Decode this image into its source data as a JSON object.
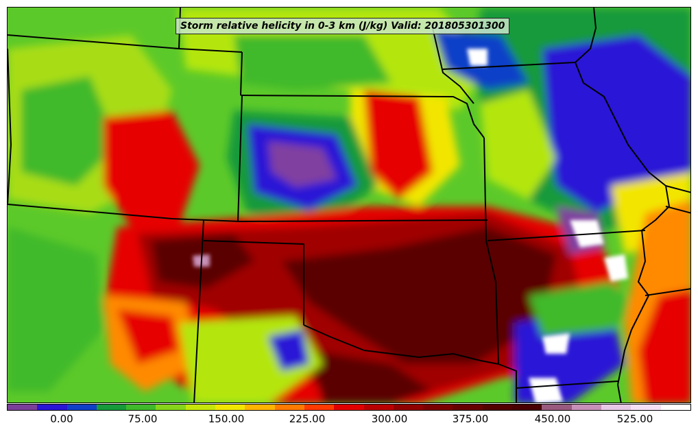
{
  "title": "Storm relative helicity in 0-3 km (J/kg) Valid: 201805301300",
  "colorbar": {
    "colors": [
      "#7b3f9a",
      "#2a14d6",
      "#1040c8",
      "#169a3a",
      "#3fb92a",
      "#86d51b",
      "#c6e60a",
      "#f2e600",
      "#ffb400",
      "#ff7a00",
      "#ff3a00",
      "#e00000",
      "#b80000",
      "#900000",
      "#7a0000",
      "#660000",
      "#520000",
      "#480000",
      "#9a5a80",
      "#c890b8",
      "#e8c8e6",
      "#f6e0f6",
      "#ffffff"
    ],
    "labels": [
      "0.00",
      "75.00",
      "150.00",
      "225.00",
      "300.00",
      "375.00",
      "450.00",
      "525.00"
    ]
  },
  "map_layers": {
    "field_colors": {
      "violet": "#8040a0",
      "blue": "#2a14d6",
      "dark_green": "#169a3a",
      "green": "#3fb92a",
      "lime": "#b4e60a",
      "yellow": "#f2e600",
      "orange": "#ff8a00",
      "red": "#e60000",
      "dark_red": "#a00000",
      "maroon": "#5a0000",
      "white": "#ffffff",
      "pink": "#c890b8"
    },
    "boundary_color": "#000000"
  }
}
